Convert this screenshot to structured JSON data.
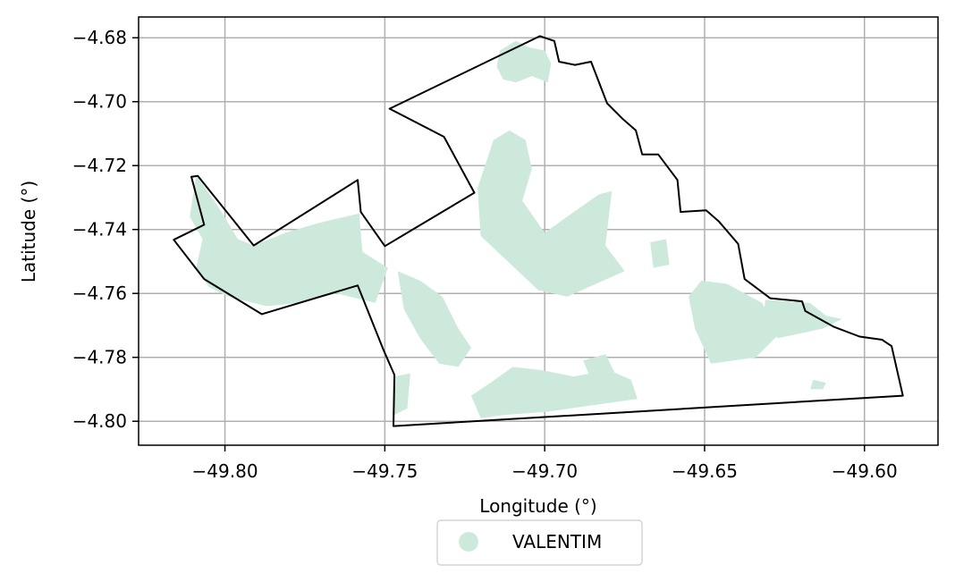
{
  "chart_data": {
    "type": "map",
    "xlabel": "Longitude (°)",
    "ylabel": "Latitude (°)",
    "xlim": [
      -49.827,
      -49.577
    ],
    "ylim": [
      -4.8075,
      -4.6735
    ],
    "grid": true,
    "x_ticks": [
      -49.8,
      -49.75,
      -49.7,
      -49.65,
      -49.6
    ],
    "x_tick_labels": [
      "−49.80",
      "−49.75",
      "−49.70",
      "−49.65",
      "−49.60"
    ],
    "y_ticks": [
      -4.68,
      -4.7,
      -4.72,
      -4.74,
      -4.76,
      -4.78,
      -4.8
    ],
    "y_tick_labels": [
      "−4.68",
      "−4.70",
      "−4.72",
      "−4.74",
      "−4.76",
      "−4.78",
      "−4.80"
    ],
    "legend": {
      "placement": "bottom-center",
      "entries": [
        {
          "label": "VALENTIM",
          "color": "#cde9dc"
        }
      ]
    },
    "colors": {
      "region_fill": "#cde9dc",
      "boundary": "#000000",
      "grid": "#b0b0b0"
    },
    "boundary": [
      [
        -49.816,
        -4.7432
      ],
      [
        -49.8065,
        -4.7385
      ],
      [
        -49.8105,
        -4.7235
      ],
      [
        -49.8085,
        -4.7232
      ],
      [
        -49.791,
        -4.745
      ],
      [
        -49.7585,
        -4.7245
      ],
      [
        -49.7575,
        -4.7345
      ],
      [
        -49.75,
        -4.7452
      ],
      [
        -49.722,
        -4.7285
      ],
      [
        -49.7315,
        -4.711
      ],
      [
        -49.7485,
        -4.7022
      ],
      [
        -49.7015,
        -4.6795
      ],
      [
        -49.697,
        -4.681
      ],
      [
        -49.6955,
        -4.6875
      ],
      [
        -49.6905,
        -4.6885
      ],
      [
        -49.6855,
        -4.6875
      ],
      [
        -49.6805,
        -4.7005
      ],
      [
        -49.6755,
        -4.7055
      ],
      [
        -49.6715,
        -4.709
      ],
      [
        -49.6695,
        -4.7165
      ],
      [
        -49.6645,
        -4.7165
      ],
      [
        -49.6585,
        -4.7245
      ],
      [
        -49.6575,
        -4.7345
      ],
      [
        -49.6495,
        -4.734
      ],
      [
        -49.6455,
        -4.7375
      ],
      [
        -49.6395,
        -4.7445
      ],
      [
        -49.6375,
        -4.7555
      ],
      [
        -49.6295,
        -4.7615
      ],
      [
        -49.6195,
        -4.7625
      ],
      [
        -49.6185,
        -4.7655
      ],
      [
        -49.6095,
        -4.7705
      ],
      [
        -49.6015,
        -4.7735
      ],
      [
        -49.5945,
        -4.7745
      ],
      [
        -49.5915,
        -4.7765
      ],
      [
        -49.588,
        -4.792
      ],
      [
        -49.7473,
        -4.8015
      ],
      [
        -49.747,
        -4.7855
      ],
      [
        -49.7505,
        -4.7775
      ],
      [
        -49.7585,
        -4.7575
      ],
      [
        -49.7885,
        -4.7665
      ],
      [
        -49.8065,
        -4.7555
      ],
      [
        -49.816,
        -4.7432
      ]
    ],
    "patches": [
      [
        [
          -49.714,
          -4.684
        ],
        [
          -49.709,
          -4.681
        ],
        [
          -49.705,
          -4.683
        ],
        [
          -49.7,
          -4.684
        ],
        [
          -49.698,
          -4.688
        ],
        [
          -49.699,
          -4.694
        ],
        [
          -49.704,
          -4.692
        ],
        [
          -49.709,
          -4.694
        ],
        [
          -49.713,
          -4.693
        ],
        [
          -49.715,
          -4.689
        ]
      ],
      [
        [
          -49.716,
          -4.712
        ],
        [
          -49.711,
          -4.709
        ],
        [
          -49.706,
          -4.712
        ],
        [
          -49.704,
          -4.721
        ],
        [
          -49.707,
          -4.731
        ],
        [
          -49.7,
          -4.741
        ],
        [
          -49.693,
          -4.736
        ],
        [
          -49.683,
          -4.729
        ],
        [
          -49.679,
          -4.728
        ],
        [
          -49.681,
          -4.745
        ],
        [
          -49.675,
          -4.753
        ],
        [
          -49.693,
          -4.761
        ],
        [
          -49.702,
          -4.759
        ],
        [
          -49.72,
          -4.742
        ],
        [
          -49.721,
          -4.727
        ],
        [
          -49.718,
          -4.718
        ]
      ],
      [
        [
          -49.667,
          -4.744
        ],
        [
          -49.662,
          -4.743
        ],
        [
          -49.661,
          -4.751
        ],
        [
          -49.666,
          -4.752
        ]
      ],
      [
        [
          -49.651,
          -4.756
        ],
        [
          -49.643,
          -4.757
        ],
        [
          -49.632,
          -4.763
        ],
        [
          -49.629,
          -4.769
        ],
        [
          -49.624,
          -4.77
        ],
        [
          -49.634,
          -4.78
        ],
        [
          -49.648,
          -4.782
        ],
        [
          -49.653,
          -4.771
        ],
        [
          -49.655,
          -4.761
        ]
      ],
      [
        [
          -49.631,
          -4.762
        ],
        [
          -49.617,
          -4.763
        ],
        [
          -49.612,
          -4.767
        ],
        [
          -49.607,
          -4.768
        ],
        [
          -49.613,
          -4.771
        ],
        [
          -49.627,
          -4.774
        ],
        [
          -49.632,
          -4.77
        ]
      ],
      [
        [
          -49.809,
          -4.723
        ],
        [
          -49.802,
          -4.733
        ],
        [
          -49.796,
          -4.743
        ],
        [
          -49.791,
          -4.745
        ],
        [
          -49.781,
          -4.741
        ],
        [
          -49.771,
          -4.738
        ],
        [
          -49.758,
          -4.735
        ],
        [
          -49.757,
          -4.747
        ],
        [
          -49.749,
          -4.752
        ],
        [
          -49.753,
          -4.763
        ],
        [
          -49.765,
          -4.76
        ],
        [
          -49.777,
          -4.763
        ],
        [
          -49.787,
          -4.764
        ],
        [
          -49.799,
          -4.761
        ],
        [
          -49.805,
          -4.758
        ],
        [
          -49.809,
          -4.752
        ],
        [
          -49.807,
          -4.743
        ],
        [
          -49.811,
          -4.736
        ]
      ],
      [
        [
          -49.746,
          -4.753
        ],
        [
          -49.739,
          -4.756
        ],
        [
          -49.732,
          -4.761
        ],
        [
          -49.727,
          -4.771
        ],
        [
          -49.723,
          -4.777
        ],
        [
          -49.727,
          -4.783
        ],
        [
          -49.733,
          -4.782
        ],
        [
          -49.739,
          -4.774
        ],
        [
          -49.744,
          -4.765
        ]
      ],
      [
        [
          -49.747,
          -4.786
        ],
        [
          -49.742,
          -4.785
        ],
        [
          -49.743,
          -4.796
        ],
        [
          -49.747,
          -4.798
        ]
      ],
      [
        [
          -49.71,
          -4.783
        ],
        [
          -49.701,
          -4.784
        ],
        [
          -49.691,
          -4.786
        ],
        [
          -49.68,
          -4.784
        ],
        [
          -49.673,
          -4.787
        ],
        [
          -49.671,
          -4.793
        ],
        [
          -49.685,
          -4.795
        ],
        [
          -49.699,
          -4.797
        ],
        [
          -49.712,
          -4.798
        ],
        [
          -49.72,
          -4.799
        ],
        [
          -49.723,
          -4.792
        ],
        [
          -49.717,
          -4.788
        ]
      ],
      [
        [
          -49.688,
          -4.781
        ],
        [
          -49.681,
          -4.779
        ],
        [
          -49.678,
          -4.785
        ],
        [
          -49.685,
          -4.788
        ]
      ],
      [
        [
          -49.616,
          -4.787
        ],
        [
          -49.612,
          -4.788
        ],
        [
          -49.613,
          -4.79
        ],
        [
          -49.617,
          -4.79
        ]
      ]
    ]
  }
}
